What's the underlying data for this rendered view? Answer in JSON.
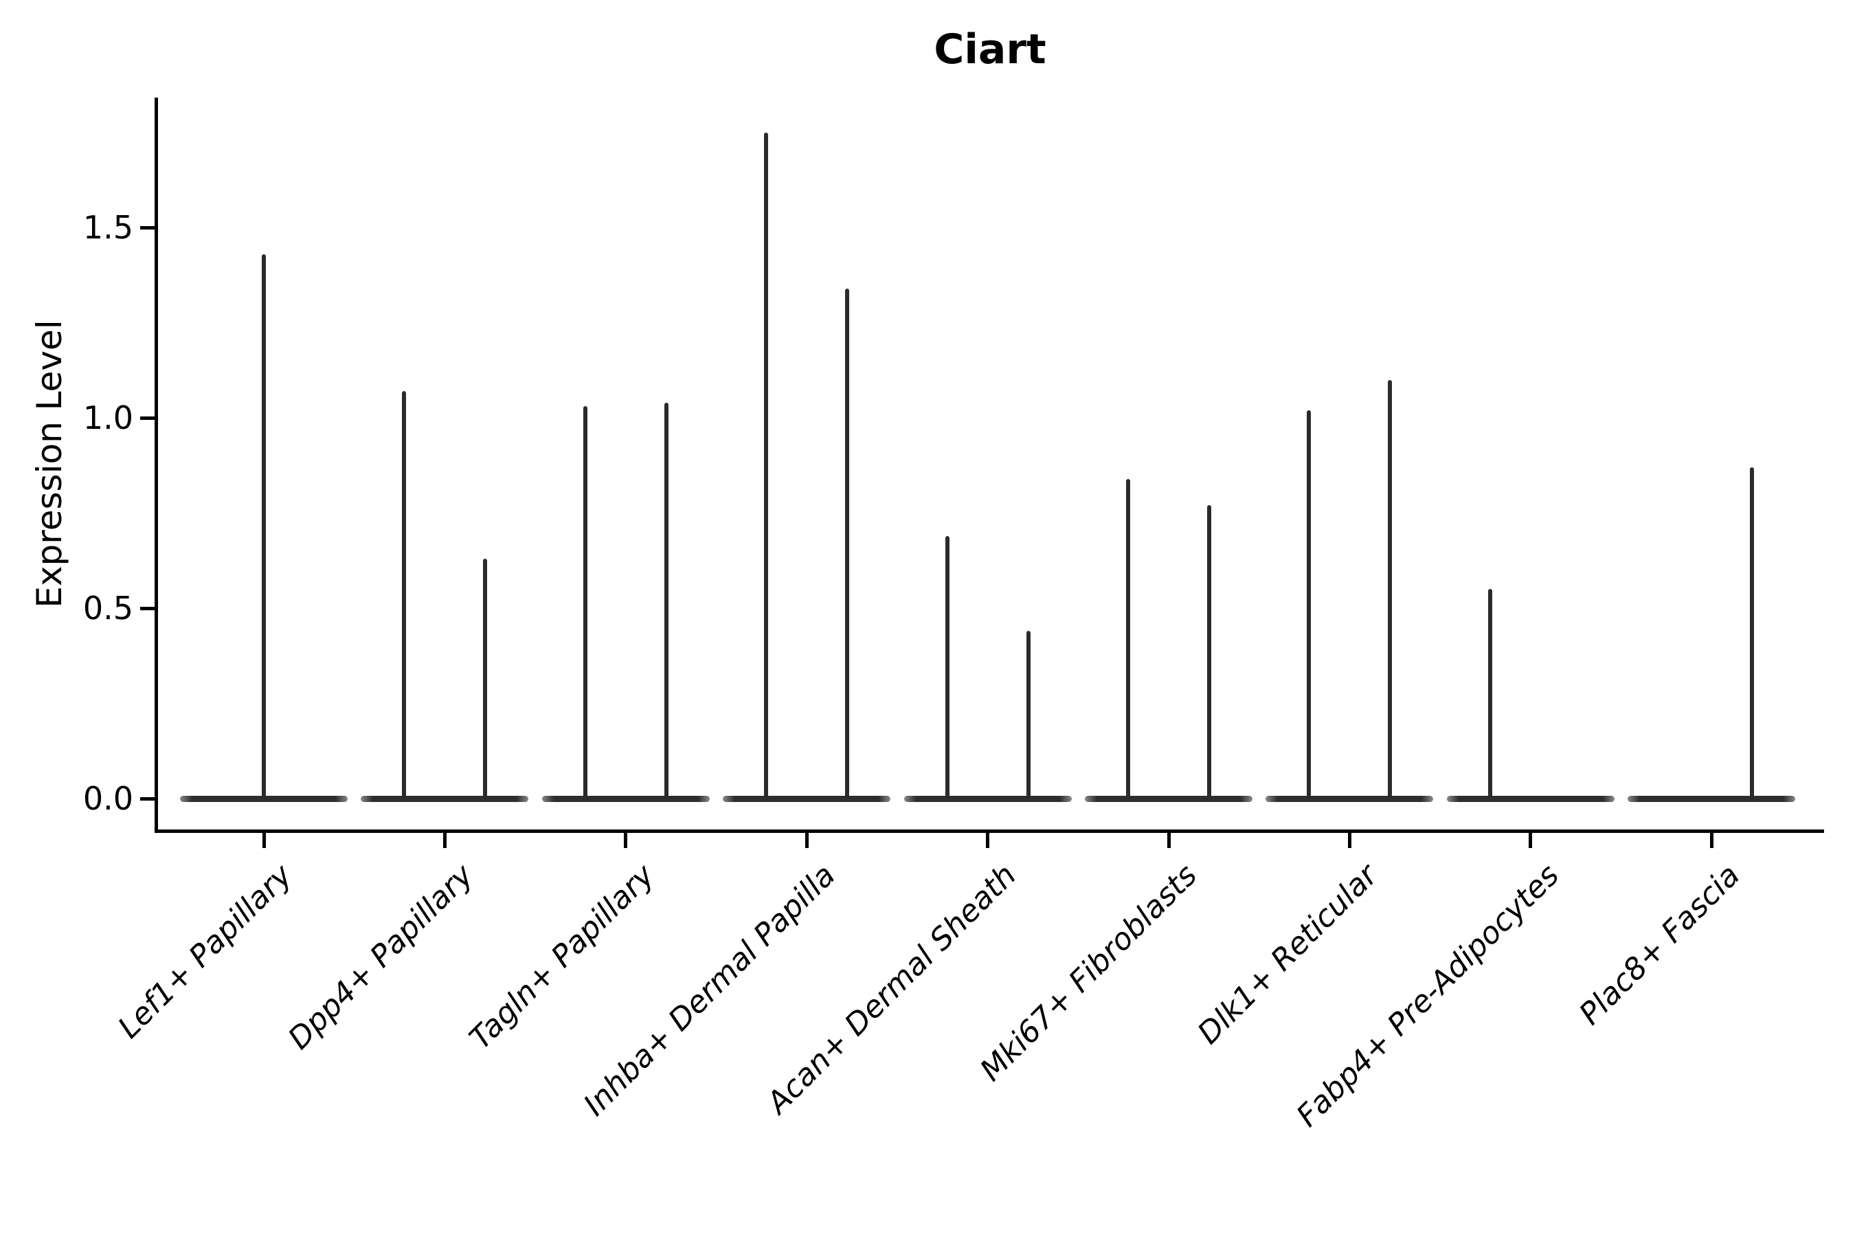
{
  "title": "Ciart",
  "y_axis": {
    "label": "Expression Level",
    "ticks": [
      {
        "label": "0.0",
        "value": 0.0
      },
      {
        "label": "0.5",
        "value": 0.5
      },
      {
        "label": "1.0",
        "value": 1.0
      },
      {
        "label": "1.5",
        "value": 1.5
      }
    ]
  },
  "chart_data": {
    "type": "violin",
    "title": "Ciart",
    "xlabel": "",
    "ylabel": "Expression Level",
    "ylim": [
      -0.085,
      1.84
    ],
    "yticks": [
      0.0,
      0.5,
      1.0,
      1.5
    ],
    "grid": false,
    "legend": "none",
    "categories": [
      "Lef1+ Papillary",
      "Dpp4+ Papillary",
      "Tagln+ Papillary",
      "Inhba+ Dermal Papilla",
      "Acan+ Dermal Sheath",
      "Mki67+ Fibroblasts",
      "Dlk1+ Reticular",
      "Fabp4+ Pre-Adipocytes",
      "Plac8+ Fascia"
    ],
    "violins": [
      {
        "category": "Lef1+ Papillary",
        "layout": "single",
        "peaks": [
          {
            "pos": "center",
            "max": 1.43
          }
        ]
      },
      {
        "category": "Dpp4+ Papillary",
        "layout": "split",
        "peaks": [
          {
            "pos": "left",
            "max": 1.07
          },
          {
            "pos": "right",
            "max": 0.63
          }
        ]
      },
      {
        "category": "Tagln+ Papillary",
        "layout": "split",
        "peaks": [
          {
            "pos": "left",
            "max": 1.03
          },
          {
            "pos": "right",
            "max": 1.04
          }
        ]
      },
      {
        "category": "Inhba+ Dermal Papilla",
        "layout": "split",
        "peaks": [
          {
            "pos": "left",
            "max": 1.75
          },
          {
            "pos": "right",
            "max": 1.34
          }
        ]
      },
      {
        "category": "Acan+ Dermal Sheath",
        "layout": "split",
        "peaks": [
          {
            "pos": "left",
            "max": 0.69
          },
          {
            "pos": "right",
            "max": 0.44
          }
        ]
      },
      {
        "category": "Mki67+ Fibroblasts",
        "layout": "split",
        "peaks": [
          {
            "pos": "left",
            "max": 0.84
          },
          {
            "pos": "right",
            "max": 0.77
          }
        ]
      },
      {
        "category": "Dlk1+ Reticular",
        "layout": "split",
        "peaks": [
          {
            "pos": "left",
            "max": 1.02
          },
          {
            "pos": "right",
            "max": 1.1
          }
        ]
      },
      {
        "category": "Fabp4+ Pre-Adipocytes",
        "layout": "split",
        "peaks": [
          {
            "pos": "left",
            "max": 0.55
          },
          {
            "pos": "right",
            "max": 0.0
          }
        ]
      },
      {
        "category": "Plac8+ Fascia",
        "layout": "split",
        "peaks": [
          {
            "pos": "left",
            "max": 0.0
          },
          {
            "pos": "right",
            "max": 0.87
          }
        ]
      }
    ]
  }
}
